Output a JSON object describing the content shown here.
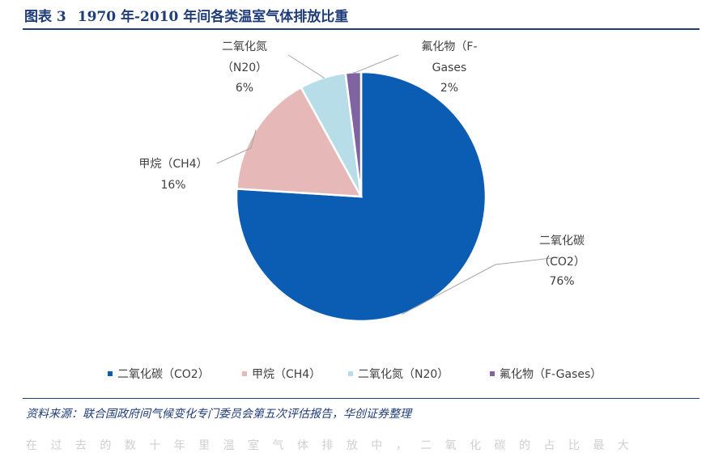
{
  "figure": {
    "number": "图表 3",
    "title": "1970 年-2010 年间各类温室气体排放比重"
  },
  "chart_data": {
    "type": "pie",
    "title": "1970 年-2010 年间各类温室气体排放比重",
    "slices": [
      {
        "name": "二氧化碳",
        "formula": "（CO2）",
        "legend": "二氧化碳（CO2）",
        "value": 76,
        "pct_label": "76%",
        "color": "#0b5db3"
      },
      {
        "name": "甲烷",
        "formula": "（CH4）",
        "legend": "甲烷（CH4）",
        "value": 16,
        "pct_label": "16%",
        "color": "#e6b8b7"
      },
      {
        "name": "二氧化氮",
        "formula": "（N20）",
        "legend": "二氧化氮（N20）",
        "value": 6,
        "pct_label": "6%",
        "color": "#b7dde8"
      },
      {
        "name": "氟化物（F-",
        "formula": "Gases",
        "legend": "氟化物（F-Gases）",
        "value": 2,
        "pct_label": "2%",
        "color": "#8064a2"
      }
    ],
    "legend_position": "bottom"
  },
  "source": "资料来源：联合国政府间气候变化专门委员会第五次评估报告，华创证券整理",
  "cut_text": "在 过 去 的 数 十 年 里 温 室 气 体 排 放 中 ， 二 氧 化 碳 的 占 比 最 大"
}
